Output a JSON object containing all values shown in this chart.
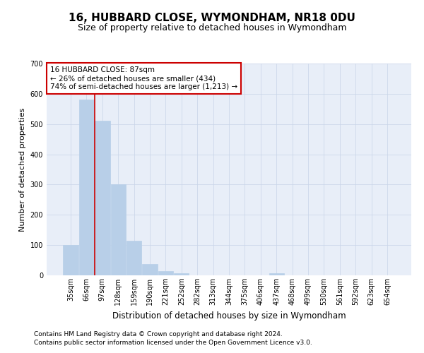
{
  "title": "16, HUBBARD CLOSE, WYMONDHAM, NR18 0DU",
  "subtitle": "Size of property relative to detached houses in Wymondham",
  "xlabel": "Distribution of detached houses by size in Wymondham",
  "ylabel": "Number of detached properties",
  "categories": [
    "35sqm",
    "66sqm",
    "97sqm",
    "128sqm",
    "159sqm",
    "190sqm",
    "221sqm",
    "252sqm",
    "282sqm",
    "313sqm",
    "344sqm",
    "375sqm",
    "406sqm",
    "437sqm",
    "468sqm",
    "499sqm",
    "530sqm",
    "561sqm",
    "592sqm",
    "623sqm",
    "654sqm"
  ],
  "values": [
    100,
    580,
    510,
    300,
    115,
    37,
    15,
    8,
    0,
    0,
    0,
    0,
    0,
    7,
    0,
    0,
    0,
    0,
    0,
    0,
    0
  ],
  "bar_color": "#b8cfe8",
  "bar_edgecolor": "#b8cfe8",
  "vline_x": 1.5,
  "vline_color": "#cc0000",
  "annotation_text": "16 HUBBARD CLOSE: 87sqm\n← 26% of detached houses are smaller (434)\n74% of semi-detached houses are larger (1,213) →",
  "annotation_box_edgecolor": "#cc0000",
  "annotation_box_facecolor": "#ffffff",
  "ylim": [
    0,
    700
  ],
  "yticks": [
    0,
    100,
    200,
    300,
    400,
    500,
    600,
    700
  ],
  "footer1": "Contains HM Land Registry data © Crown copyright and database right 2024.",
  "footer2": "Contains public sector information licensed under the Open Government Licence v3.0.",
  "bg_color": "#ffffff",
  "plot_bg_color": "#e8eef8",
  "grid_color": "#c8d4e8",
  "title_fontsize": 11,
  "subtitle_fontsize": 9,
  "tick_fontsize": 7,
  "ylabel_fontsize": 8,
  "xlabel_fontsize": 8.5,
  "annotation_fontsize": 7.5,
  "footer_fontsize": 6.5
}
